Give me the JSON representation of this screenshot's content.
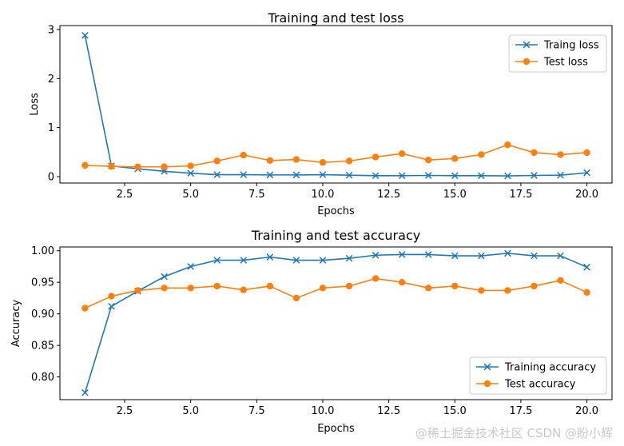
{
  "chart_data": [
    {
      "type": "line",
      "title": "Training and test loss",
      "xlabel": "Epochs",
      "ylabel": "Loss",
      "xlim": [
        0.05,
        20.95
      ],
      "ylim": [
        -0.13,
        3.08
      ],
      "xticks": [
        2.5,
        5.0,
        7.5,
        10.0,
        12.5,
        15.0,
        17.5,
        20.0
      ],
      "xtick_labels": [
        "2.5",
        "5.0",
        "7.5",
        "10.0",
        "12.5",
        "15.0",
        "17.5",
        "20.0"
      ],
      "yticks": [
        0,
        1,
        2,
        3
      ],
      "ytick_labels": [
        "0",
        "1",
        "2",
        "3"
      ],
      "legend_position": "top-right",
      "x": [
        1,
        2,
        3,
        4,
        5,
        6,
        7,
        8,
        9,
        10,
        11,
        12,
        13,
        14,
        15,
        16,
        17,
        18,
        19,
        20
      ],
      "series": [
        {
          "name": "Traing loss",
          "color": "#1f77b4",
          "marker": "x",
          "values": [
            2.88,
            0.22,
            0.16,
            0.11,
            0.07,
            0.04,
            0.04,
            0.035,
            0.035,
            0.04,
            0.03,
            0.02,
            0.02,
            0.025,
            0.02,
            0.02,
            0.015,
            0.025,
            0.03,
            0.08
          ]
        },
        {
          "name": "Test loss",
          "color": "#ff7f0e",
          "marker": "o",
          "values": [
            0.23,
            0.21,
            0.2,
            0.2,
            0.22,
            0.32,
            0.44,
            0.33,
            0.35,
            0.29,
            0.32,
            0.4,
            0.47,
            0.34,
            0.37,
            0.45,
            0.65,
            0.49,
            0.45,
            0.49
          ]
        }
      ]
    },
    {
      "type": "line",
      "title": "Training and test accuracy",
      "xlabel": "Epochs",
      "ylabel": "Accuracy",
      "xlim": [
        0.05,
        20.95
      ],
      "ylim": [
        0.764,
        1.006
      ],
      "xticks": [
        2.5,
        5.0,
        7.5,
        10.0,
        12.5,
        15.0,
        17.5,
        20.0
      ],
      "xtick_labels": [
        "2.5",
        "5.0",
        "7.5",
        "10.0",
        "12.5",
        "15.0",
        "17.5",
        "20.0"
      ],
      "yticks": [
        0.8,
        0.85,
        0.9,
        0.95,
        1.0
      ],
      "ytick_labels": [
        "0.80",
        "0.85",
        "0.90",
        "0.95",
        "1.00"
      ],
      "legend_position": "lower-right",
      "x": [
        1,
        2,
        3,
        4,
        5,
        6,
        7,
        8,
        9,
        10,
        11,
        12,
        13,
        14,
        15,
        16,
        17,
        18,
        19,
        20
      ],
      "series": [
        {
          "name": "Training accuracy",
          "color": "#1f77b4",
          "marker": "x",
          "values": [
            0.775,
            0.912,
            0.936,
            0.959,
            0.975,
            0.985,
            0.985,
            0.99,
            0.985,
            0.985,
            0.988,
            0.993,
            0.994,
            0.994,
            0.992,
            0.992,
            0.996,
            0.992,
            0.992,
            0.974
          ]
        },
        {
          "name": "Test accuracy",
          "color": "#ff7f0e",
          "marker": "o",
          "values": [
            0.909,
            0.928,
            0.937,
            0.941,
            0.941,
            0.944,
            0.938,
            0.944,
            0.925,
            0.941,
            0.944,
            0.956,
            0.95,
            0.941,
            0.944,
            0.937,
            0.937,
            0.944,
            0.953,
            0.934
          ]
        }
      ]
    }
  ],
  "watermark": "@稀土掘金技术社区 CSDN @盼小辉"
}
